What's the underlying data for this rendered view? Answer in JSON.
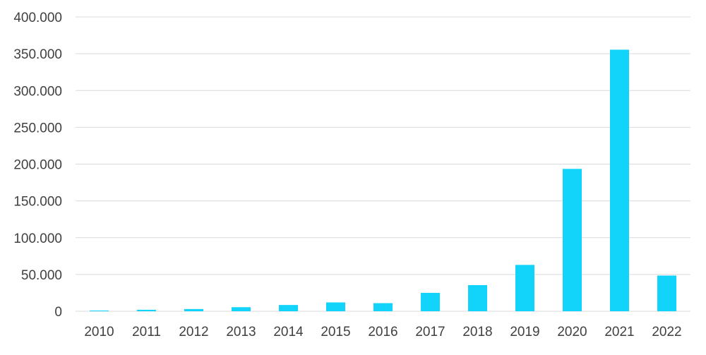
{
  "chart_data": {
    "type": "bar",
    "categories": [
      "2010",
      "2011",
      "2012",
      "2013",
      "2014",
      "2015",
      "2016",
      "2017",
      "2018",
      "2019",
      "2020",
      "2021",
      "2022"
    ],
    "values": [
      500,
      2000,
      3000,
      5500,
      8500,
      12000,
      11000,
      25000,
      35500,
      63000,
      193500,
      355500,
      48500
    ],
    "ylim": [
      0,
      400000
    ],
    "y_ticks": [
      {
        "value": 0,
        "label": "0"
      },
      {
        "value": 50000,
        "label": "50.000"
      },
      {
        "value": 100000,
        "label": "100.000"
      },
      {
        "value": 150000,
        "label": "150.000"
      },
      {
        "value": 200000,
        "label": "200.000"
      },
      {
        "value": 250000,
        "label": "250.000"
      },
      {
        "value": 300000,
        "label": "300.000"
      },
      {
        "value": 350000,
        "label": "350.000"
      },
      {
        "value": 400000,
        "label": "400.000"
      }
    ],
    "grid": true,
    "legend": "none",
    "colors": {
      "bar": "#12D4FA",
      "grid": "#D9D9D9",
      "text": "#404040"
    }
  }
}
